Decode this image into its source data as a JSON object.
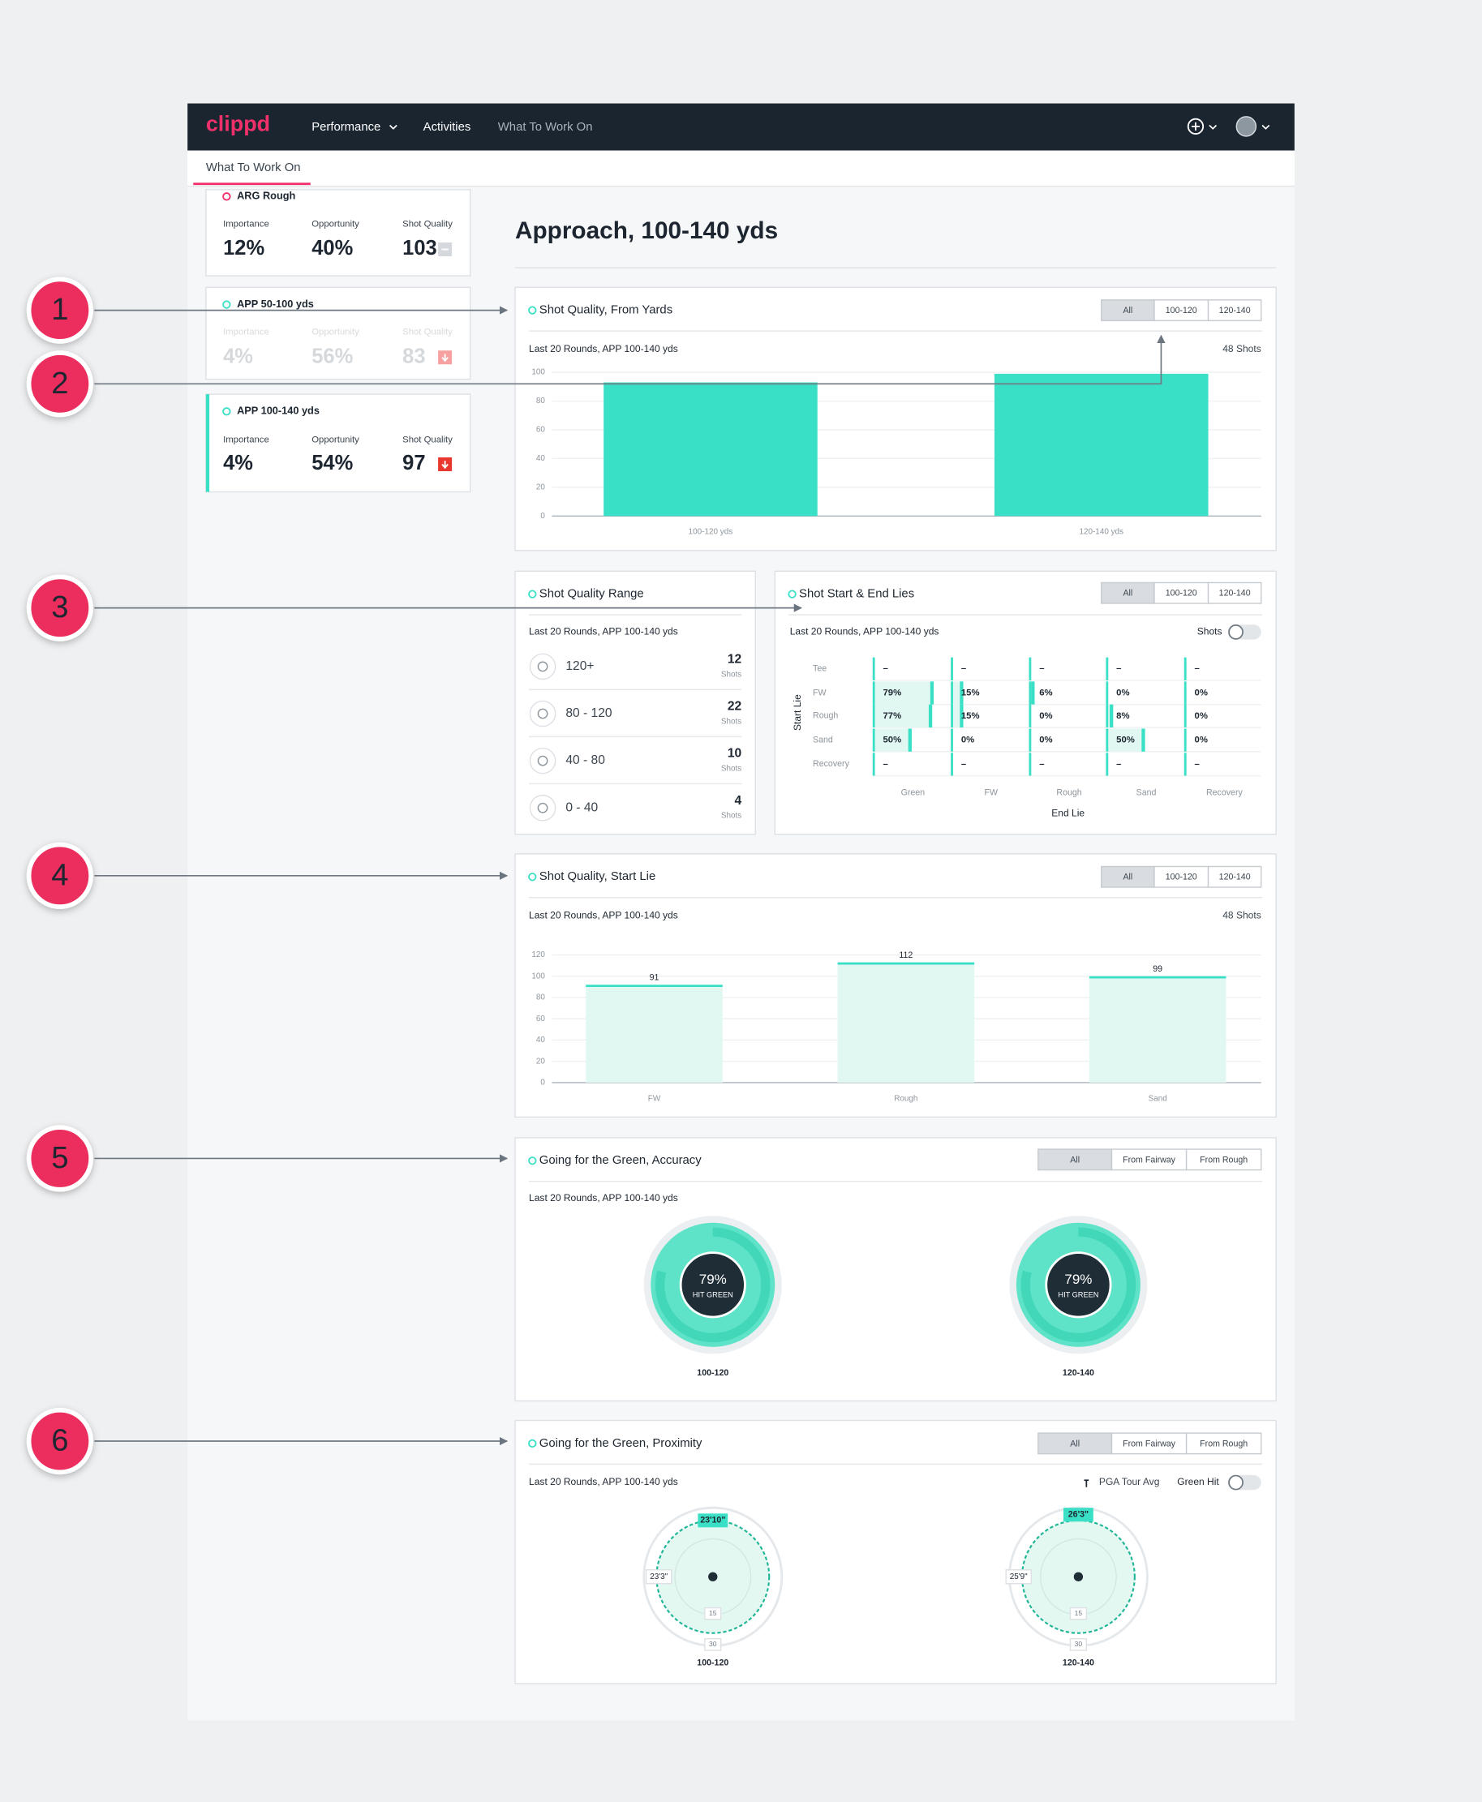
{
  "nav": {
    "logo": "clippd",
    "items": [
      "Performance",
      "Activities",
      "What To Work On"
    ]
  },
  "tab": "What To Work On",
  "cards": [
    {
      "title": "ARG Rough",
      "metrics": [
        {
          "label": "Importance",
          "value": "12%"
        },
        {
          "label": "Opportunity",
          "value": "40%"
        },
        {
          "label": "Shot Quality",
          "value": "103"
        }
      ]
    },
    {
      "title": "APP 50-100 yds",
      "metrics": [
        {
          "label": "Importance",
          "value": "4%"
        },
        {
          "label": "Opportunity",
          "value": "56%"
        },
        {
          "label": "Shot Quality",
          "value": "83"
        }
      ]
    },
    {
      "title": "APP 100-140 yds",
      "metrics": [
        {
          "label": "Importance",
          "value": "4%"
        },
        {
          "label": "Opportunity",
          "value": "54%"
        },
        {
          "label": "Shot Quality",
          "value": "97"
        }
      ]
    }
  ],
  "page_title": "Approach, 100-140 yds",
  "panels": {
    "yards": {
      "title": "Shot Quality, From Yards",
      "filters": [
        "All",
        "100-120",
        "120-140"
      ],
      "subtitle": "Last 20 Rounds, APP 100-140 yds",
      "count": "48 Shots",
      "chart": {
        "type": "bar",
        "categories": [
          "100-120 yds",
          "120-140 yds"
        ],
        "values": [
          93,
          99
        ],
        "ylim": [
          0,
          100
        ],
        "yticks": [
          0,
          20,
          40,
          60,
          80,
          100
        ],
        "grid": true,
        "color": "#3ae0c5"
      }
    },
    "range": {
      "title": "Shot Quality Range",
      "subtitle": "Last 20 Rounds, APP 100-140 yds",
      "rows": [
        {
          "label": "120+",
          "value": 12,
          "unit": "Shots"
        },
        {
          "label": "80 - 120",
          "value": 22,
          "unit": "Shots"
        },
        {
          "label": "40 - 80",
          "value": 10,
          "unit": "Shots"
        },
        {
          "label": "0 - 40",
          "value": 4,
          "unit": "Shots"
        }
      ]
    },
    "lies": {
      "title": "Shot Start & End Lies",
      "filters": [
        "All",
        "100-120",
        "120-140"
      ],
      "subtitle": "Last 20 Rounds, APP 100-140 yds",
      "toggle": "Shots",
      "y_label": "Start Lie",
      "x_label": "End Lie",
      "row_labels": [
        "Tee",
        "FW",
        "Rough",
        "Sand",
        "Recovery"
      ],
      "col_labels": [
        "Green",
        "FW",
        "Rough",
        "Sand",
        "Recovery"
      ],
      "cells": [
        [
          null,
          null,
          null,
          null,
          null
        ],
        [
          79,
          15,
          6,
          0,
          0
        ],
        [
          77,
          15,
          0,
          8,
          0
        ],
        [
          50,
          0,
          0,
          50,
          0
        ],
        [
          null,
          null,
          null,
          null,
          null
        ]
      ],
      "cell_labels": [
        [
          "–",
          "–",
          "–",
          "–",
          "–"
        ],
        [
          "79%",
          "15%",
          "6%",
          "0%",
          "0%"
        ],
        [
          "77%",
          "15%",
          "0%",
          "8%",
          "0%"
        ],
        [
          "50%",
          "0%",
          "0%",
          "50%",
          "0%"
        ],
        [
          "–",
          "–",
          "–",
          "–",
          "–"
        ]
      ]
    },
    "start_lie": {
      "title": "Shot Quality, Start Lie",
      "filters": [
        "All",
        "100-120",
        "120-140"
      ],
      "subtitle": "Last 20 Rounds, APP 100-140 yds",
      "count": "48 Shots",
      "chart": {
        "type": "bar",
        "categories": [
          "FW",
          "Rough",
          "Sand"
        ],
        "values": [
          91,
          112,
          99
        ],
        "ylim": [
          0,
          120
        ],
        "yticks": [
          0,
          20,
          40,
          60,
          80,
          100,
          120
        ],
        "grid": true,
        "color": "#3ae0c5"
      }
    },
    "accuracy": {
      "title": "Going for the Green, Accuracy",
      "filters": [
        "All",
        "From Fairway",
        "From Rough"
      ],
      "subtitle": "Last 20 Rounds, APP 100-140 yds",
      "donuts": [
        {
          "value": 79,
          "value_label": "79%",
          "text": "HIT GREEN",
          "caption": "100-120"
        },
        {
          "value": 79,
          "value_label": "79%",
          "text": "HIT GREEN",
          "caption": "120-140"
        }
      ]
    },
    "proximity": {
      "title": "Going for the Green, Proximity",
      "filters": [
        "All",
        "From Fairway",
        "From Rough"
      ],
      "subtitle": "Last 20 Rounds, APP 100-140 yds",
      "legend": "PGA Tour Avg",
      "toggle": "Green Hit",
      "plots": [
        {
          "top": "23'10\"",
          "left": "23'3\"",
          "rings": [
            "15",
            "30"
          ],
          "caption": "100-120"
        },
        {
          "top": "26'3\"",
          "left": "25'9\"",
          "rings": [
            "15",
            "30"
          ],
          "caption": "120-140"
        }
      ]
    }
  },
  "callouts": [
    "1",
    "2",
    "3",
    "4",
    "5",
    "6"
  ]
}
